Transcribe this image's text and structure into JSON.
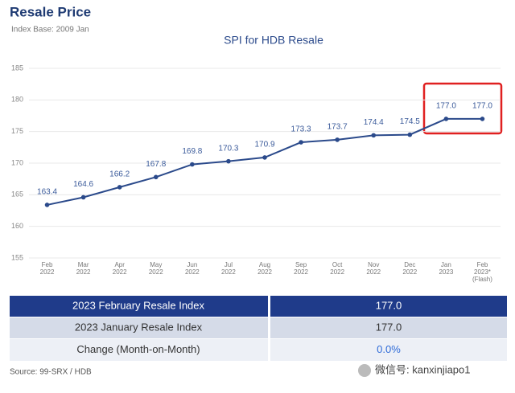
{
  "header": {
    "title": "Resale Price",
    "subtitle": "Index Base: 2009 Jan"
  },
  "chart_data": {
    "type": "line",
    "title": "SPI for HDB Resale",
    "categories": [
      [
        "Feb",
        "2022"
      ],
      [
        "Mar",
        "2022"
      ],
      [
        "Apr",
        "2022"
      ],
      [
        "May",
        "2022"
      ],
      [
        "Jun",
        "2022"
      ],
      [
        "Jul",
        "2022"
      ],
      [
        "Aug",
        "2022"
      ],
      [
        "Sep",
        "2022"
      ],
      [
        "Oct",
        "2022"
      ],
      [
        "Nov",
        "2022"
      ],
      [
        "Dec",
        "2022"
      ],
      [
        "Jan",
        "2023"
      ],
      [
        "Feb",
        "2023*",
        "(Flash)"
      ]
    ],
    "values": [
      163.4,
      164.6,
      166.2,
      167.8,
      169.8,
      170.3,
      170.9,
      173.3,
      173.7,
      174.4,
      174.5,
      177,
      177
    ],
    "value_labels": [
      "163.4",
      "164.6",
      "166.2",
      "167.8",
      "169.8",
      "170.3",
      "170.9",
      "173.3",
      "173.7",
      "174.4",
      "174.5",
      "177.0",
      "177.0"
    ],
    "color": "#2b4a8b",
    "ylim": [
      155,
      185
    ],
    "yticks": [
      155,
      160,
      165,
      170,
      175,
      180,
      185
    ],
    "grid": true
  },
  "table": {
    "rows": [
      [
        "2023 February Resale Index",
        "177.0"
      ],
      [
        "2023 January Resale Index",
        "177.0"
      ],
      [
        "Change (Month-on-Month)",
        "0.0%"
      ]
    ]
  },
  "footer": {
    "source": "Source: 99-SRX / HDB",
    "watermark": "微信号: kanxinjiapo1"
  }
}
